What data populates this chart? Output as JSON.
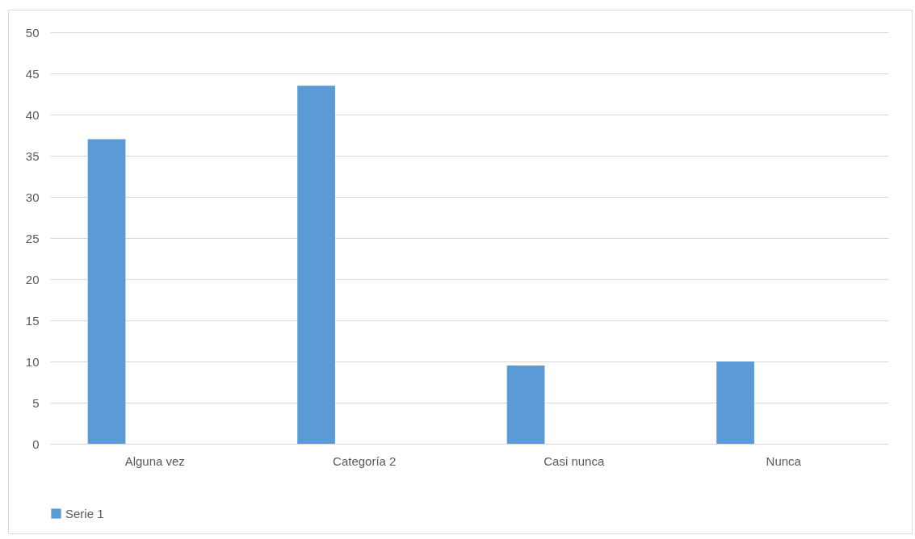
{
  "chart_data": {
    "type": "bar",
    "categories": [
      "Alguna vez",
      "Categoría 2",
      "Casi nunca",
      "Nunca"
    ],
    "series": [
      {
        "name": "Serie 1",
        "color": "#5b9bd5",
        "values": [
          37,
          43.5,
          9.5,
          10
        ]
      }
    ],
    "ylim": [
      0,
      50
    ],
    "yticks": [
      0,
      5,
      10,
      15,
      20,
      25,
      30,
      35,
      40,
      45,
      50
    ],
    "grid": "y",
    "legend": "bottom"
  }
}
